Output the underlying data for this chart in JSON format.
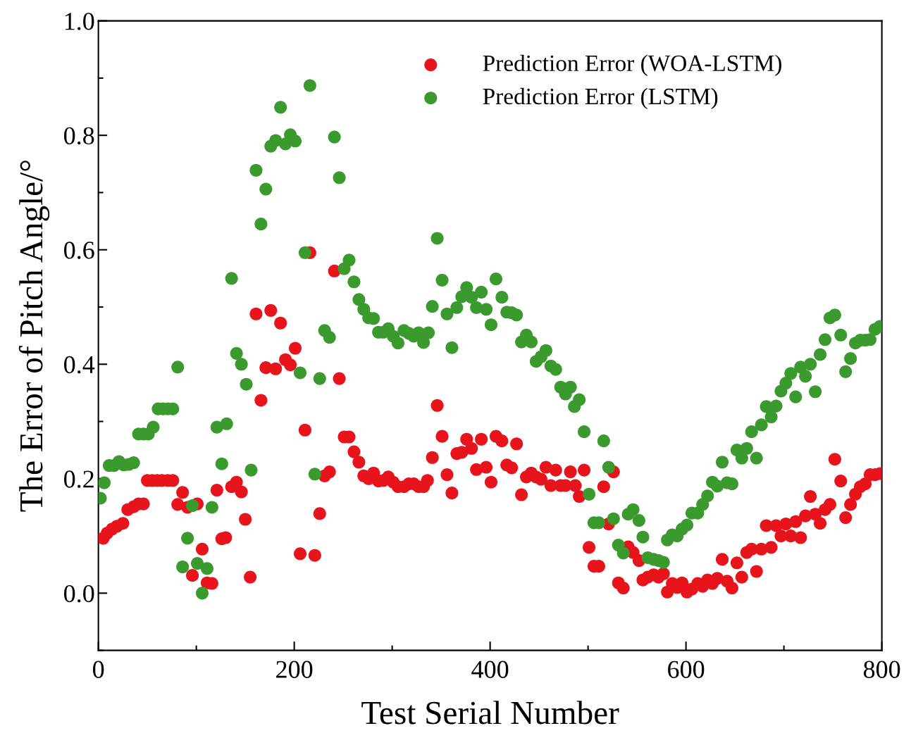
{
  "chart_data": {
    "type": "scatter",
    "xlabel": "Test Serial Number",
    "ylabel": "The Error of Pitch Angle/°",
    "xlim": [
      0,
      800
    ],
    "xticks": [
      0,
      200,
      400,
      600,
      800
    ],
    "ylim": [
      -0.1,
      1.0
    ],
    "yticks": [
      {
        "value": 0,
        "label": "0.0"
      },
      {
        "value": 0.2,
        "label": "0.2"
      },
      {
        "value": 0.4,
        "label": "0.4"
      },
      {
        "value": 0.6,
        "label": "0.6"
      },
      {
        "value": 0.8,
        "label": "0.8"
      },
      {
        "value": 1.0,
        "label": "1.0"
      }
    ],
    "marker": "circle",
    "legend": "top right",
    "grid": false,
    "series": [
      {
        "name": "Prediction Error (WOA-LSTM)",
        "color": "#e8141b",
        "x": [
          5,
          9,
          14,
          19,
          25,
          30,
          36,
          41,
          46,
          50,
          55,
          60,
          65,
          71,
          76,
          81,
          86,
          91,
          96,
          101,
          106,
          111,
          116,
          121,
          126,
          130,
          136,
          141,
          146,
          150,
          155,
          161,
          166,
          171,
          176,
          181,
          186,
          191,
          196,
          201,
          206,
          211,
          216,
          221,
          226,
          231,
          236,
          241,
          246,
          251,
          256,
          261,
          266,
          271,
          276,
          281,
          286,
          291,
          296,
          301,
          306,
          312,
          317,
          322,
          327,
          332,
          336,
          341,
          346,
          351,
          356,
          361,
          366,
          371,
          376,
          381,
          386,
          391,
          396,
          401,
          406,
          412,
          417,
          422,
          427,
          432,
          437,
          442,
          447,
          452,
          457,
          462,
          467,
          472,
          477,
          482,
          487,
          491,
          496,
          501,
          506,
          511,
          516,
          521,
          526,
          531,
          536,
          541,
          546,
          552,
          556,
          561,
          567,
          572,
          577,
          581,
          586,
          591,
          596,
          601,
          606,
          612,
          617,
          622,
          627,
          632,
          637,
          642,
          647,
          652,
          657,
          662,
          667,
          672,
          677,
          682,
          687,
          692,
          697,
          702,
          707,
          712,
          717,
          722,
          727,
          732,
          737,
          742,
          747,
          752,
          758,
          763,
          768,
          773,
          778,
          783,
          788,
          793,
          798
        ],
        "values": [
          0.096,
          0.105,
          0.112,
          0.117,
          0.122,
          0.146,
          0.151,
          0.156,
          0.156,
          0.197,
          0.197,
          0.197,
          0.197,
          0.197,
          0.197,
          0.155,
          0.176,
          0.15,
          0.031,
          0.156,
          0.077,
          0.018,
          0.017,
          0.18,
          0.095,
          0.097,
          0.186,
          0.194,
          0.177,
          0.129,
          0.028,
          0.488,
          0.337,
          0.394,
          0.494,
          0.392,
          0.472,
          0.408,
          0.399,
          0.428,
          0.069,
          0.285,
          0.595,
          0.066,
          0.139,
          0.205,
          0.212,
          0.563,
          0.375,
          0.273,
          0.273,
          0.247,
          0.229,
          0.205,
          0.2,
          0.21,
          0.196,
          0.197,
          0.203,
          0.194,
          0.186,
          0.186,
          0.191,
          0.191,
          0.186,
          0.186,
          0.197,
          0.237,
          0.328,
          0.274,
          0.207,
          0.175,
          0.244,
          0.246,
          0.269,
          0.253,
          0.216,
          0.269,
          0.22,
          0.194,
          0.274,
          0.266,
          0.224,
          0.219,
          0.261,
          0.172,
          0.203,
          0.21,
          0.203,
          0.199,
          0.22,
          0.188,
          0.215,
          0.188,
          0.188,
          0.212,
          0.188,
          0.169,
          0.215,
          0.08,
          0.047,
          0.047,
          0.186,
          0.121,
          0.212,
          0.018,
          0.009,
          0.081,
          0.071,
          0.057,
          0.023,
          0.028,
          0.032,
          0.028,
          0.034,
          0.002,
          0.017,
          0.01,
          0.018,
          0.002,
          0.007,
          0.017,
          0.012,
          0.023,
          0.017,
          0.026,
          0.059,
          0.021,
          0.009,
          0.053,
          0.028,
          0.071,
          0.077,
          0.038,
          0.077,
          0.118,
          0.08,
          0.118,
          0.1,
          0.121,
          0.1,
          0.125,
          0.097,
          0.135,
          0.169,
          0.138,
          0.122,
          0.146,
          0.155,
          0.234,
          0.196,
          0.132,
          0.155,
          0.173,
          0.186,
          0.191,
          0.207,
          0.207,
          0.209
        ]
      },
      {
        "name": "Prediction Error (LSTM)",
        "color": "#3a9a2e",
        "x": [
          2,
          6,
          11,
          16,
          21,
          26,
          31,
          36,
          41,
          46,
          51,
          56,
          61,
          66,
          71,
          76,
          81,
          86,
          91,
          96,
          101,
          106,
          111,
          116,
          121,
          126,
          131,
          136,
          141,
          146,
          151,
          156,
          161,
          166,
          171,
          176,
          181,
          186,
          191,
          196,
          201,
          206,
          211,
          216,
          221,
          226,
          231,
          236,
          241,
          246,
          251,
          256,
          261,
          266,
          271,
          276,
          281,
          286,
          291,
          296,
          301,
          306,
          312,
          317,
          322,
          327,
          332,
          337,
          341,
          346,
          351,
          356,
          361,
          366,
          371,
          376,
          381,
          386,
          391,
          396,
          401,
          406,
          412,
          417,
          422,
          427,
          432,
          437,
          442,
          447,
          452,
          457,
          462,
          467,
          472,
          477,
          482,
          486,
          491,
          496,
          501,
          506,
          511,
          516,
          521,
          526,
          531,
          536,
          541,
          546,
          552,
          556,
          561,
          567,
          572,
          577,
          581,
          586,
          591,
          596,
          601,
          606,
          612,
          617,
          622,
          627,
          632,
          637,
          642,
          647,
          652,
          657,
          662,
          667,
          672,
          677,
          682,
          687,
          692,
          697,
          702,
          707,
          712,
          717,
          722,
          727,
          732,
          737,
          742,
          747,
          752,
          758,
          763,
          768,
          773,
          778,
          783,
          788,
          793,
          798
        ],
        "values": [
          0.166,
          0.193,
          0.223,
          0.223,
          0.23,
          0.224,
          0.225,
          0.228,
          0.278,
          0.278,
          0.278,
          0.29,
          0.322,
          0.322,
          0.322,
          0.322,
          0.395,
          0.046,
          0.096,
          0.153,
          0.052,
          0.0,
          0.043,
          0.15,
          0.29,
          0.226,
          0.296,
          0.55,
          0.419,
          0.4,
          0.365,
          0.215,
          0.739,
          0.645,
          0.706,
          0.781,
          0.791,
          0.849,
          0.785,
          0.801,
          0.79,
          0.385,
          0.595,
          0.887,
          0.208,
          0.375,
          0.459,
          0.447,
          0.797,
          0.726,
          0.567,
          0.582,
          0.544,
          0.513,
          0.496,
          0.481,
          0.48,
          0.456,
          0.456,
          0.462,
          0.449,
          0.437,
          0.459,
          0.454,
          0.449,
          0.455,
          0.438,
          0.455,
          0.501,
          0.62,
          0.547,
          0.488,
          0.429,
          0.499,
          0.518,
          0.534,
          0.517,
          0.499,
          0.526,
          0.496,
          0.469,
          0.549,
          0.517,
          0.491,
          0.49,
          0.486,
          0.439,
          0.451,
          0.439,
          0.405,
          0.413,
          0.424,
          0.397,
          0.391,
          0.36,
          0.348,
          0.36,
          0.326,
          0.338,
          0.282,
          0.173,
          0.123,
          0.123,
          0.266,
          0.22,
          0.13,
          0.084,
          0.07,
          0.138,
          0.146,
          0.127,
          0.098,
          0.062,
          0.059,
          0.057,
          0.054,
          0.093,
          0.102,
          0.1,
          0.112,
          0.119,
          0.14,
          0.14,
          0.155,
          0.17,
          0.194,
          0.187,
          0.229,
          0.193,
          0.191,
          0.25,
          0.236,
          0.253,
          0.282,
          0.236,
          0.294,
          0.326,
          0.308,
          0.327,
          0.353,
          0.367,
          0.384,
          0.343,
          0.395,
          0.379,
          0.4,
          0.352,
          0.417,
          0.443,
          0.481,
          0.486,
          0.451,
          0.387,
          0.41,
          0.437,
          0.442,
          0.442,
          0.443,
          0.461,
          0.466
        ]
      }
    ]
  }
}
